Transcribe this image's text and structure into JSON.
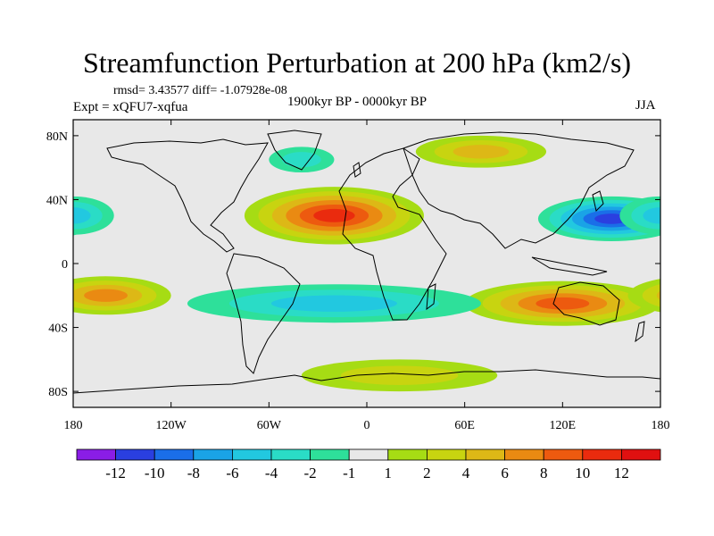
{
  "title": "Streamfunction Perturbation at 200 hPa (km2/s)",
  "stats_line": "rmsd= 3.43577 diff= -1.07928e-08",
  "experiment_line": "Expt = xQFU7-xqfua",
  "period_line": "1900kyr BP - 0000kyr BP",
  "season": "JJA",
  "y_ticks": [
    "80N",
    "40N",
    "0",
    "40S",
    "80S"
  ],
  "x_ticks": [
    "180",
    "120W",
    "60W",
    "0",
    "60E",
    "120E",
    "180"
  ],
  "colorbar": {
    "labels": [
      "-12",
      "-10",
      "-8",
      "-6",
      "-4",
      "-2",
      "-1",
      "1",
      "2",
      "4",
      "6",
      "8",
      "10",
      "12"
    ],
    "colors": [
      "#8a1de6",
      "#2a3fe0",
      "#1a6ee8",
      "#1aa3e6",
      "#22c8e0",
      "#2adcc6",
      "#2ee09a",
      "#e8e8e8",
      "#a6dc14",
      "#c8d410",
      "#ddb816",
      "#ea8a12",
      "#ed5a0f",
      "#ea2b0e",
      "#e01010"
    ]
  },
  "chart_data": {
    "type": "heatmap",
    "title": "Streamfunction Perturbation at 200 hPa (km2/s)",
    "levels": [
      -12,
      -10,
      -8,
      -6,
      -4,
      -2,
      -1,
      1,
      2,
      4,
      6,
      8,
      10,
      12
    ],
    "xlim": [
      -180,
      180
    ],
    "ylim": [
      -90,
      90
    ],
    "features": [
      {
        "lon": -20,
        "lat": 30,
        "rx": 55,
        "ry": 18,
        "value": 10
      },
      {
        "lon": 150,
        "lat": 28,
        "rx": 45,
        "ry": 14,
        "value": -10
      },
      {
        "lon": 120,
        "lat": -25,
        "rx": 60,
        "ry": 14,
        "value": 8
      },
      {
        "lon": -160,
        "lat": -20,
        "rx": 40,
        "ry": 12,
        "value": 6
      },
      {
        "lon": -20,
        "lat": -25,
        "rx": 90,
        "ry": 12,
        "value": -5
      },
      {
        "lon": -180,
        "lat": 30,
        "rx": 25,
        "ry": 12,
        "value": -5
      },
      {
        "lon": 70,
        "lat": 70,
        "rx": 40,
        "ry": 10,
        "value": 4
      },
      {
        "lon": 20,
        "lat": -70,
        "rx": 60,
        "ry": 10,
        "value": 2
      },
      {
        "lon": -40,
        "lat": 65,
        "rx": 20,
        "ry": 8,
        "value": -3
      }
    ]
  }
}
